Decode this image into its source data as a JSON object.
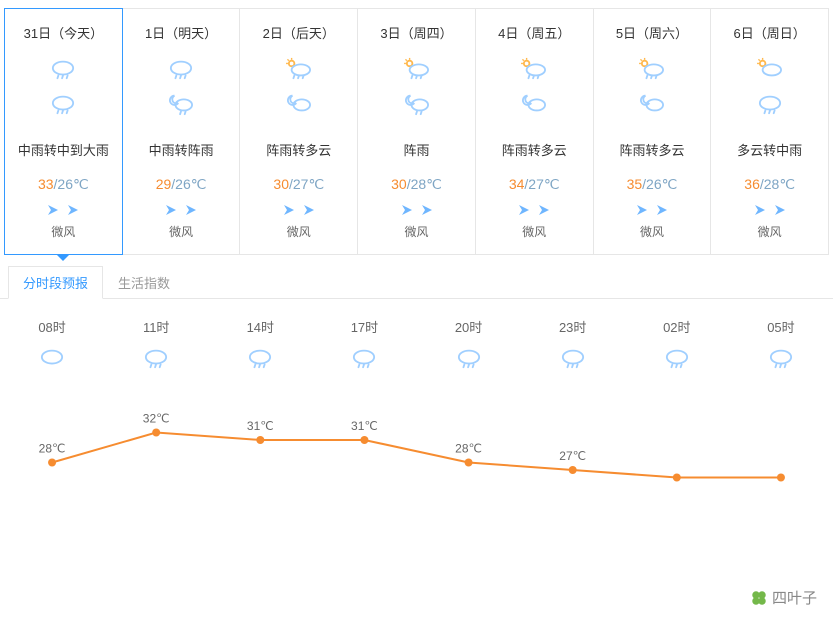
{
  "colors": {
    "border": "#e6e6e6",
    "selected_border": "#3399ff",
    "temp_high": "#f68c30",
    "temp_low": "#7ea5c4",
    "text": "#333333",
    "muted": "#999999",
    "icon_blue": "#a0cfff",
    "wind_blue": "#6fb6ff",
    "chart_line": "#f68c30",
    "chart_point": "#f68c30",
    "watermark_green": "#74b84a"
  },
  "days": [
    {
      "date": "31日（今天）",
      "day_icon": "rain",
      "night_icon": "rain",
      "desc": "中雨转中到大雨",
      "high": "33",
      "low": "/26℃",
      "wind": "微风",
      "selected": true
    },
    {
      "date": "1日（明天）",
      "day_icon": "rain",
      "night_icon": "night-shower",
      "desc": "中雨转阵雨",
      "high": "29",
      "low": "/26℃",
      "wind": "微风",
      "selected": false
    },
    {
      "date": "2日（后天）",
      "day_icon": "sun-shower",
      "night_icon": "night-cloud",
      "desc": "阵雨转多云",
      "high": "30",
      "low": "/27℃",
      "wind": "微风",
      "selected": false
    },
    {
      "date": "3日（周四）",
      "day_icon": "sun-shower",
      "night_icon": "night-shower",
      "desc": "阵雨",
      "high": "30",
      "low": "/28℃",
      "wind": "微风",
      "selected": false
    },
    {
      "date": "4日（周五）",
      "day_icon": "sun-shower",
      "night_icon": "night-cloud",
      "desc": "阵雨转多云",
      "high": "34",
      "low": "/27℃",
      "wind": "微风",
      "selected": false
    },
    {
      "date": "5日（周六）",
      "day_icon": "sun-shower",
      "night_icon": "night-cloud",
      "desc": "阵雨转多云",
      "high": "35",
      "low": "/26℃",
      "wind": "微风",
      "selected": false
    },
    {
      "date": "6日（周日）",
      "day_icon": "sun-cloud",
      "night_icon": "rain",
      "desc": "多云转中雨",
      "high": "36",
      "low": "/28℃",
      "wind": "微风",
      "selected": false
    }
  ],
  "tabs": [
    {
      "label": "分时段预报",
      "active": true
    },
    {
      "label": "生活指数",
      "active": false
    }
  ],
  "hourly": {
    "times": [
      "08时",
      "11时",
      "14时",
      "17时",
      "20时",
      "23时",
      "02时",
      "05时"
    ],
    "icons": [
      "cloud",
      "rain",
      "rain",
      "rain",
      "rain",
      "rain",
      "rain",
      "rain"
    ],
    "chart": {
      "type": "line",
      "values": [
        28,
        32,
        31,
        31,
        28,
        27,
        26,
        26
      ],
      "labels": [
        "28℃",
        "32℃",
        "31℃",
        "31℃",
        "28℃",
        "27℃",
        "",
        ""
      ],
      "ylim": [
        25,
        33
      ],
      "line_color": "#f68c30",
      "point_color": "#f68c30",
      "line_width": 2,
      "point_radius": 4,
      "label_fontsize": 12,
      "label_color": "#666666"
    }
  },
  "watermark": {
    "text": "四叶子"
  }
}
